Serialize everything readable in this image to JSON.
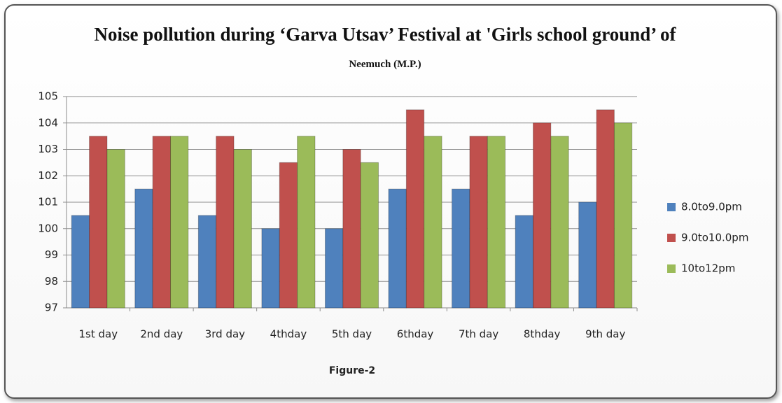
{
  "chart_data": {
    "type": "bar",
    "title": "Noise pollution  during ‘Garva Utsav’ Festival at 'Girls school ground’ of",
    "title_place": "Neemuch (M.P.)",
    "caption": "Figure-2",
    "categories": [
      "1st day",
      "2nd day",
      "3rd day",
      "4thday",
      "5th day",
      "6thday",
      "7th day",
      "8thday",
      "9th day"
    ],
    "series": [
      {
        "name": "8.0to9.0pm",
        "color": "#4f81bd",
        "values": [
          100.5,
          101.5,
          100.5,
          100,
          100,
          101.5,
          101.5,
          100.5,
          101
        ]
      },
      {
        "name": "9.0to10.0pm",
        "color": "#c0504d",
        "values": [
          103.5,
          103.5,
          103.5,
          102.5,
          103,
          104.5,
          103.5,
          104,
          104.5
        ]
      },
      {
        "name": "10to12pm",
        "color": "#9bbb59",
        "values": [
          103,
          103.5,
          103,
          103.5,
          102.5,
          103.5,
          103.5,
          103.5,
          104
        ]
      }
    ],
    "ylim": [
      97,
      105
    ],
    "yticks": [
      97,
      98,
      99,
      100,
      101,
      102,
      103,
      104,
      105
    ],
    "grid": true,
    "legend": "right"
  }
}
